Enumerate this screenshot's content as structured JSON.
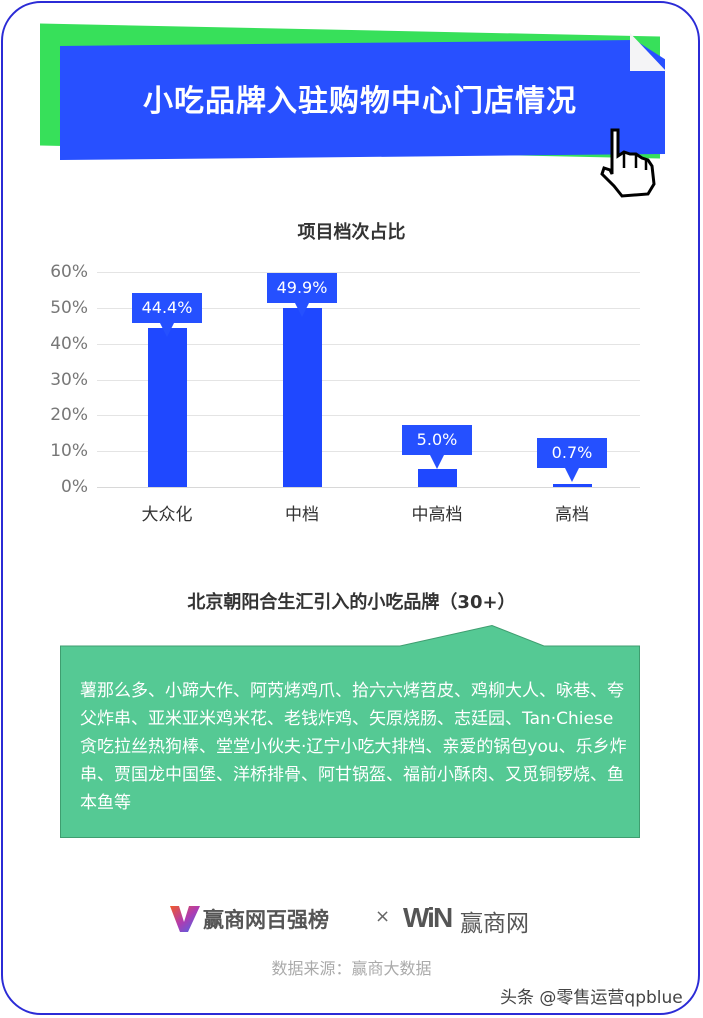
{
  "banner": {
    "title": "小吃品牌入驻购物中心门店情况",
    "pointer_icon": "hand-pointer-icon"
  },
  "colors": {
    "banner_blue": "#2850ff",
    "banner_green": "#37e05a",
    "bar_blue": "#1f48ff",
    "callout_green": "#55c994",
    "frame_border": "#2b2bd6"
  },
  "chart_data": {
    "type": "bar",
    "title": "项目档次占比",
    "categories": [
      "大众化",
      "中档",
      "中高档",
      "高档"
    ],
    "values": [
      44.4,
      49.9,
      5.0,
      0.7
    ],
    "value_labels": [
      "44.4%",
      "49.9%",
      "5.0%",
      "0.7%"
    ],
    "yticks": [
      "0%",
      "10%",
      "20%",
      "30%",
      "40%",
      "50%",
      "60%"
    ],
    "ylim": [
      0,
      60
    ],
    "xlabel": "",
    "ylabel": "",
    "grid": true,
    "legend": "none"
  },
  "brands_section": {
    "title": "北京朝阳合生汇引入的小吃品牌（30+）",
    "text": "薯那么多、小蹄大作、阿芮烤鸡爪、拾六六烤苕皮、鸡柳大人、咏巷、夸父炸串、亚米亚米鸡米花、老钱炸鸡、矢原烧肠、志廷园、Tan·Chiese贪吃拉丝热狗棒、堂堂小伙夫·辽宁小吃大排档、亲爱的锅包you、乐乡炸串、贾国龙中国堡、洋桥排骨、阿甘锅盔、福前小酥肉、又觅铜锣烧、鱼本鱼等"
  },
  "footer": {
    "logo1": "赢商网百强榜",
    "times": "×",
    "logo2_mark": "WiN",
    "logo2": "赢商网",
    "source": "数据来源：赢商大数据",
    "watermark": "头条 @零售运营qpblue"
  }
}
